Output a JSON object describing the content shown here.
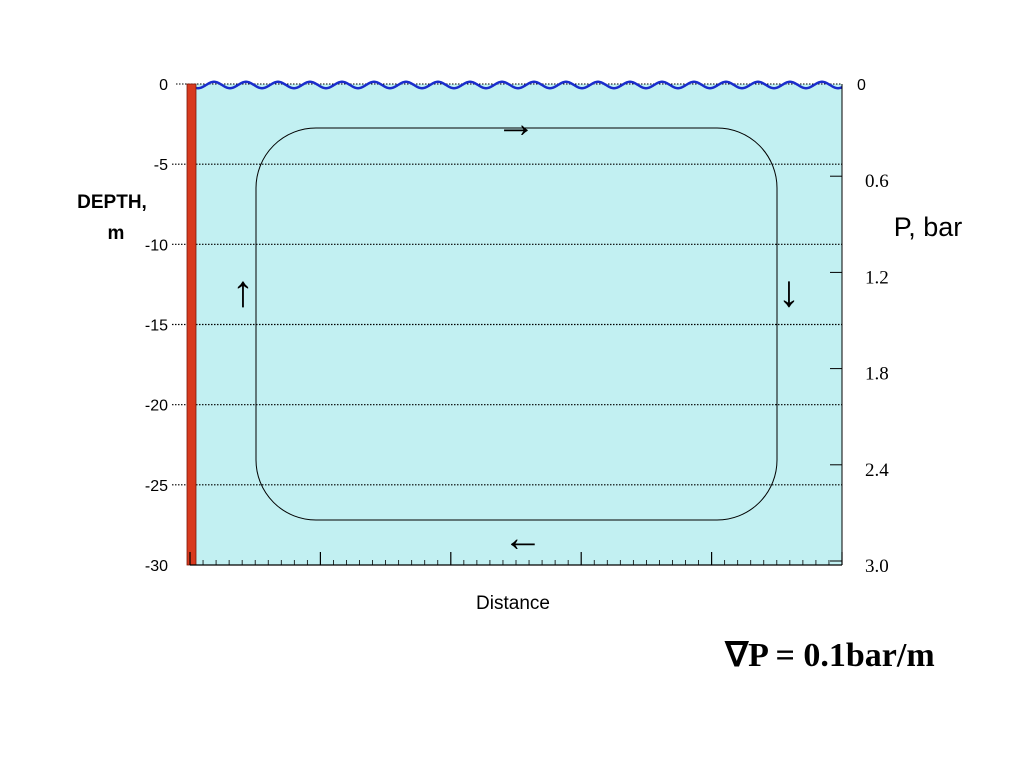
{
  "figure": {
    "depth_axis": {
      "label_line1": "DEPTH,",
      "label_line2": "m",
      "range": [
        -30,
        0
      ],
      "ticks": [
        "0",
        "-5",
        "-10",
        "-15",
        "-20",
        "-25",
        "-30"
      ]
    },
    "pressure_axis": {
      "label": "P, bar",
      "top_label": "0",
      "ticks": [
        "0.6",
        "1.2",
        "1.8",
        "2.4",
        "3.0"
      ]
    },
    "x_axis": {
      "label": "Distance"
    },
    "flow_arrows": {
      "top": "→",
      "right": "↓",
      "bottom": "←",
      "left": "↑"
    },
    "equation": "∇P = 0.1bar/m",
    "colors": {
      "water": "#c2f0f2",
      "surface_wave": "#1a2dcc",
      "wall": "#d83a1e",
      "gridline": "#000000"
    }
  }
}
